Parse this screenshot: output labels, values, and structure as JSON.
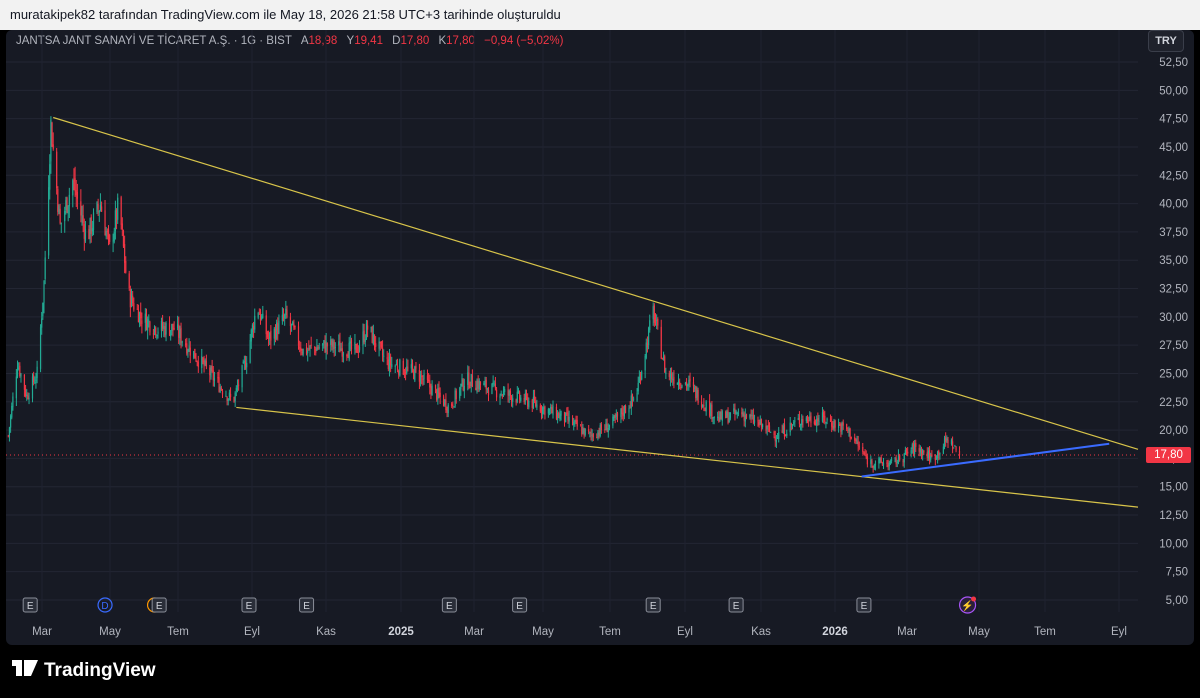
{
  "header": {
    "text": "muratakipek82 tarafından TradingView.com ile May 18, 2026 21:58 UTC+3 tarihinde oluşturuldu"
  },
  "legend": {
    "symbol": "JANTSA JANT SANAYİ VE TİCARET A.Ş. · 1G · BIST",
    "open_label": "A",
    "open": "18,98",
    "high_label": "Y",
    "high": "19,41",
    "low_label": "D",
    "low": "17,80",
    "close_label": "K",
    "close": "17,80",
    "change": "−0,94 (−5,02%)"
  },
  "currency": "TRY",
  "last_price": "17,80",
  "brand": "TradingView",
  "colors": {
    "background": "#171a24",
    "up": "#22ab94",
    "down": "#f23645",
    "trendline_yellow": "#d8c44a",
    "trendline_blue": "#3a6bff",
    "text": "#b2b5be"
  },
  "chart_data": {
    "type": "candlestick",
    "ylim": [
      5,
      52.5
    ],
    "y_ticks": [
      "5,00",
      "7,50",
      "10,00",
      "12,50",
      "15,00",
      "17,50",
      "20,00",
      "22,50",
      "25,00",
      "27,50",
      "30,00",
      "32,50",
      "35,00",
      "37,50",
      "40,00",
      "42,50",
      "45,00",
      "47,50",
      "50,00",
      "52,50"
    ],
    "x_ticks": [
      "Mar",
      "May",
      "Tem",
      "Eyl",
      "Kas",
      "2025",
      "Mar",
      "May",
      "Tem",
      "Eyl",
      "Kas",
      "2026",
      "Mar",
      "May",
      "Tem",
      "Eyl"
    ],
    "x_range": [
      "2024-02-10",
      "2026-10-20"
    ],
    "price_path": [
      [
        "2024-02-12",
        19.5
      ],
      [
        "2024-02-20",
        26.0
      ],
      [
        "2024-02-28",
        23.0
      ],
      [
        "2024-03-08",
        25.0
      ],
      [
        "2024-03-14",
        33.0
      ],
      [
        "2024-03-20",
        47.0
      ],
      [
        "2024-03-28",
        38.0
      ],
      [
        "2024-04-08",
        42.0
      ],
      [
        "2024-04-20",
        37.0
      ],
      [
        "2024-05-02",
        40.0
      ],
      [
        "2024-05-10",
        36.0
      ],
      [
        "2024-05-18",
        40.0
      ],
      [
        "2024-05-26",
        32.0
      ],
      [
        "2024-06-06",
        30.0
      ],
      [
        "2024-06-20",
        29.0
      ],
      [
        "2024-07-05",
        29.0
      ],
      [
        "2024-07-20",
        27.0
      ],
      [
        "2024-08-05",
        25.0
      ],
      [
        "2024-08-25",
        22.5
      ],
      [
        "2024-09-05",
        26.0
      ],
      [
        "2024-09-15",
        31.0
      ],
      [
        "2024-09-25",
        28.0
      ],
      [
        "2024-10-10",
        30.0
      ],
      [
        "2024-10-25",
        27.0
      ],
      [
        "2024-11-15",
        27.5
      ],
      [
        "2024-12-10",
        27.0
      ],
      [
        "2024-12-20",
        29.0
      ],
      [
        "2025-01-05",
        26.0
      ],
      [
        "2025-02-01",
        25.0
      ],
      [
        "2025-03-01",
        22.0
      ],
      [
        "2025-03-15",
        24.5
      ],
      [
        "2025-04-10",
        23.5
      ],
      [
        "2025-05-10",
        22.5
      ],
      [
        "2025-06-10",
        21.0
      ],
      [
        "2025-07-01",
        19.5
      ],
      [
        "2025-07-20",
        20.5
      ],
      [
        "2025-08-10",
        23.0
      ],
      [
        "2025-08-25",
        30.5
      ],
      [
        "2025-09-05",
        25.0
      ],
      [
        "2025-09-25",
        24.0
      ],
      [
        "2025-10-20",
        21.0
      ],
      [
        "2025-11-10",
        21.5
      ],
      [
        "2025-12-10",
        19.5
      ],
      [
        "2026-01-01",
        21.0
      ],
      [
        "2026-01-20",
        21.0
      ],
      [
        "2026-02-10",
        20.0
      ],
      [
        "2026-02-28",
        17.2
      ],
      [
        "2026-03-20",
        17.0
      ],
      [
        "2026-04-10",
        18.5
      ],
      [
        "2026-04-25",
        17.5
      ],
      [
        "2026-05-08",
        19.2
      ],
      [
        "2026-05-18",
        17.8
      ]
    ],
    "trendlines": [
      {
        "color": "yellow",
        "from": [
          "2024-03-22",
          47.6
        ],
        "to": [
          "2026-10-20",
          18.3
        ]
      },
      {
        "color": "yellow",
        "from": [
          "2024-08-28",
          22.0
        ],
        "to": [
          "2026-10-20",
          13.2
        ]
      },
      {
        "color": "blue",
        "from": [
          "2026-02-22",
          15.9
        ],
        "to": [
          "2026-09-25",
          18.8
        ]
      }
    ],
    "events": [
      {
        "date": "2024-03-02",
        "label": "E",
        "kind": "earnings"
      },
      {
        "date": "2024-05-06",
        "label": "D",
        "kind": "dividend"
      },
      {
        "date": "2024-06-18",
        "label": "S",
        "kind": "split"
      },
      {
        "date": "2024-06-22",
        "label": "E",
        "kind": "earnings"
      },
      {
        "date": "2024-09-08",
        "label": "E",
        "kind": "earnings"
      },
      {
        "date": "2024-10-28",
        "label": "E",
        "kind": "earnings"
      },
      {
        "date": "2025-03-01",
        "label": "E",
        "kind": "earnings"
      },
      {
        "date": "2025-05-01",
        "label": "E",
        "kind": "earnings"
      },
      {
        "date": "2025-08-25",
        "label": "E",
        "kind": "earnings"
      },
      {
        "date": "2025-11-05",
        "label": "E",
        "kind": "earnings"
      },
      {
        "date": "2026-02-24",
        "label": "E",
        "kind": "earnings"
      },
      {
        "date": "2026-05-25",
        "label": "⚡",
        "kind": "upcoming"
      }
    ],
    "last_price_line": 17.8
  }
}
